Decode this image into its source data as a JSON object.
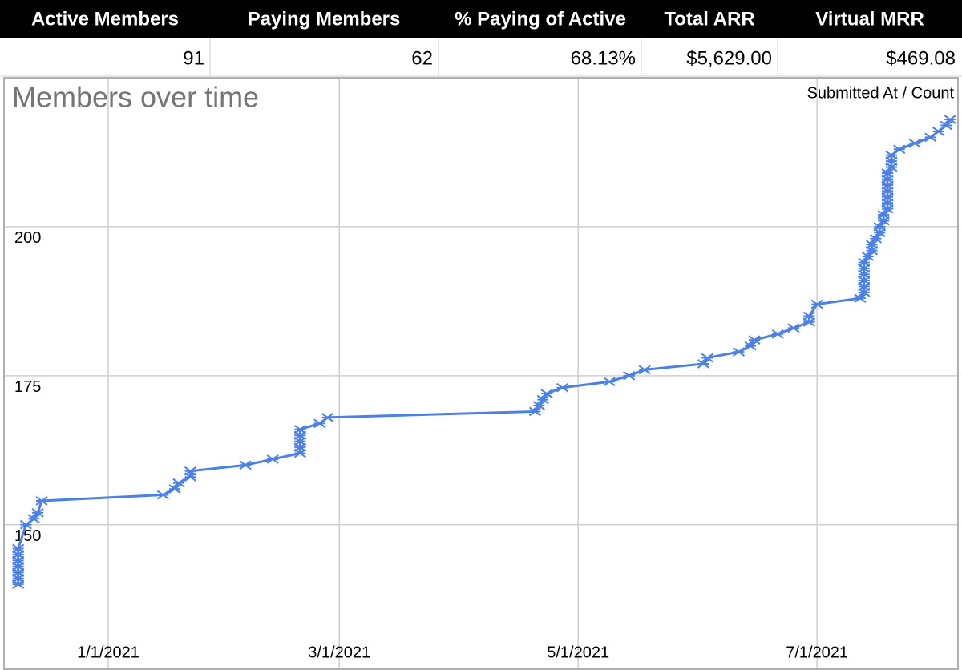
{
  "table": {
    "header": [
      "Active Members",
      "Paying Members",
      "% Paying of Active",
      "Total ARR",
      "Virtual MRR"
    ],
    "rows": [
      [
        "91",
        "62",
        "68.13%",
        "$5,629.00",
        "$469.08"
      ]
    ]
  },
  "chart_data": {
    "type": "line",
    "title": "Members over time",
    "x": [
      "2020-12-09",
      "2020-12-09",
      "2020-12-09",
      "2020-12-09",
      "2020-12-09",
      "2020-12-09",
      "2020-12-09",
      "2020-12-11",
      "2020-12-13",
      "2020-12-14",
      "2020-12-15",
      "2021-01-15",
      "2021-01-18",
      "2021-01-19",
      "2021-01-22",
      "2021-01-22",
      "2021-02-05",
      "2021-02-12",
      "2021-02-19",
      "2021-02-19",
      "2021-02-19",
      "2021-02-19",
      "2021-02-19",
      "2021-02-24",
      "2021-02-26",
      "2021-04-20",
      "2021-04-21",
      "2021-04-22",
      "2021-04-23",
      "2021-04-27",
      "2021-05-09",
      "2021-05-14",
      "2021-05-18",
      "2021-06-02",
      "2021-06-03",
      "2021-06-11",
      "2021-06-14",
      "2021-06-15",
      "2021-06-21",
      "2021-06-25",
      "2021-06-29",
      "2021-06-29",
      "2021-07-01",
      "2021-07-12",
      "2021-07-13",
      "2021-07-13",
      "2021-07-13",
      "2021-07-13",
      "2021-07-13",
      "2021-07-13",
      "2021-07-14",
      "2021-07-15",
      "2021-07-15",
      "2021-07-16",
      "2021-07-17",
      "2021-07-17",
      "2021-07-18",
      "2021-07-18",
      "2021-07-19",
      "2021-07-19",
      "2021-07-19",
      "2021-07-19",
      "2021-07-19",
      "2021-07-19",
      "2021-07-19",
      "2021-07-20",
      "2021-07-20",
      "2021-07-20",
      "2021-07-22",
      "2021-07-26",
      "2021-07-30",
      "2021-08-01",
      "2021-08-03",
      "2021-08-04"
    ],
    "series": [
      {
        "name": "Submitted At / Count",
        "color": "#4a80e8",
        "values": [
          140,
          141,
          142,
          143,
          144,
          145,
          146,
          150,
          151,
          152,
          154,
          155,
          156,
          157,
          158,
          159,
          160,
          161,
          162,
          163,
          164,
          165,
          166,
          167,
          168,
          169,
          170,
          171,
          172,
          173,
          174,
          175,
          176,
          177,
          178,
          179,
          180,
          181,
          182,
          183,
          184,
          185,
          187,
          188,
          189,
          190,
          191,
          192,
          193,
          194,
          195,
          196,
          197,
          198,
          199,
          200,
          201,
          202,
          203,
          204,
          205,
          206,
          207,
          208,
          209,
          210,
          211,
          212,
          213,
          214,
          215,
          216,
          217,
          218
        ]
      }
    ],
    "xlim": [
      "2020-12-06",
      "2021-08-06"
    ],
    "xticks": [
      {
        "value": "2021-01-01",
        "label": "1/1/2021"
      },
      {
        "value": "2021-03-01",
        "label": "3/1/2021"
      },
      {
        "value": "2021-05-01",
        "label": "5/1/2021"
      },
      {
        "value": "2021-07-01",
        "label": "7/1/2021"
      }
    ],
    "ylim": [
      126.7,
      224.6
    ],
    "yticks": [
      150,
      175,
      200
    ],
    "grid": true
  }
}
